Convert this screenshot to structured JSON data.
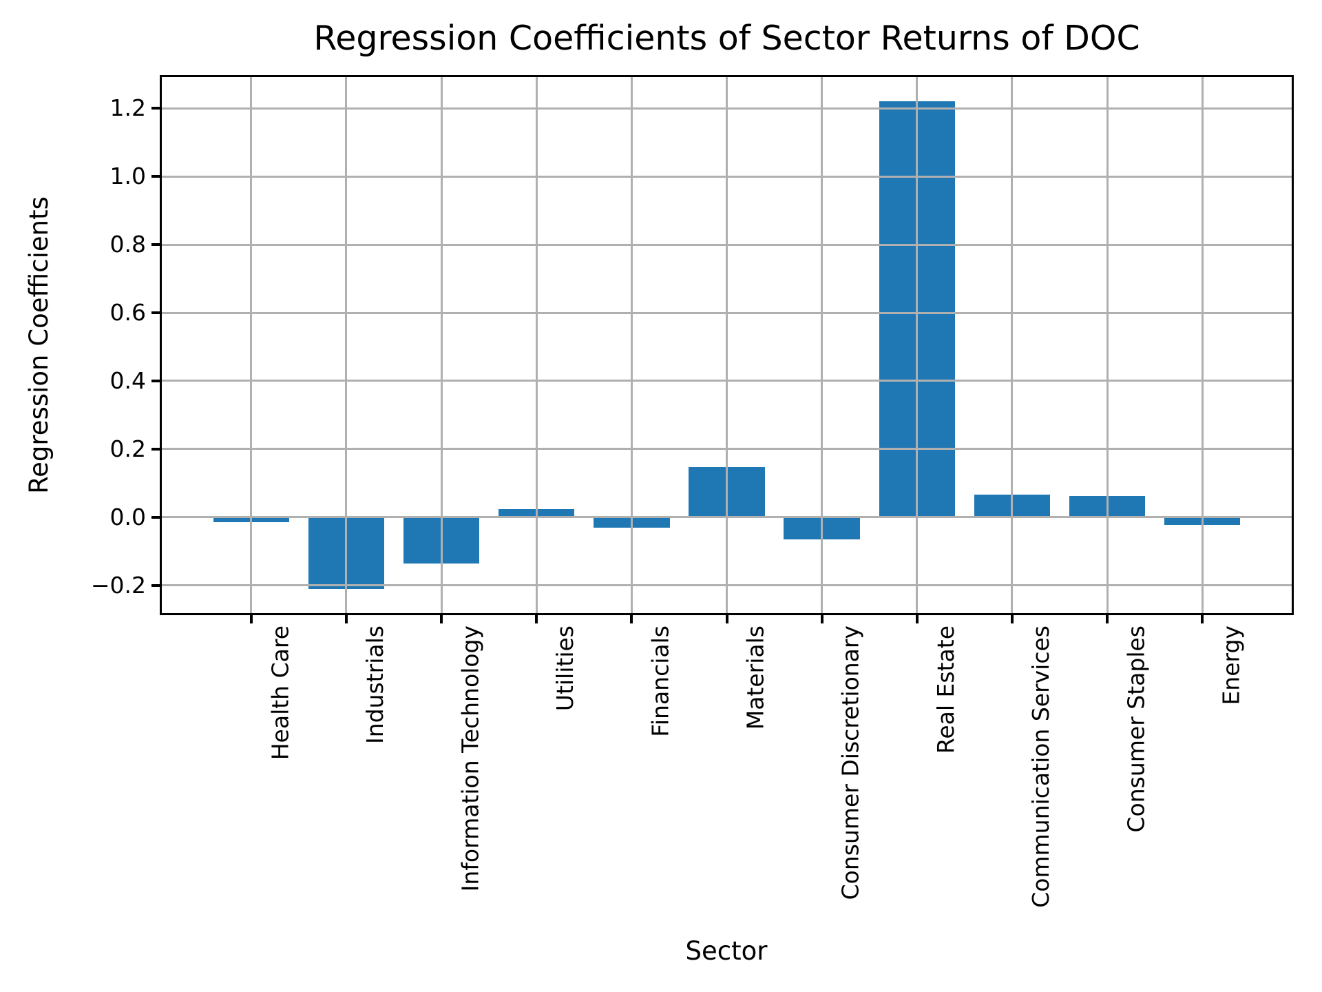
{
  "chart_data": {
    "type": "bar",
    "title": "Regression Coefficients of Sector Returns of DOC",
    "xlabel": "Sector",
    "ylabel": "Regression Coefficients",
    "categories": [
      "Health Care",
      "Industrials",
      "Information Technology",
      "Utilities",
      "Financials",
      "Materials",
      "Consumer Discretionary",
      "Real Estate",
      "Communication Services",
      "Consumer Staples",
      "Energy"
    ],
    "values": [
      -0.015,
      -0.21,
      -0.135,
      0.024,
      -0.03,
      0.148,
      -0.066,
      1.22,
      0.067,
      0.063,
      -0.022
    ],
    "ylim": [
      -0.2815,
      1.2915
    ],
    "yticks": {
      "values": [
        -0.2,
        0.0,
        0.2,
        0.4,
        0.6,
        0.8,
        1.0,
        1.2
      ],
      "labels": [
        "−0.2",
        "0.0",
        "0.2",
        "0.4",
        "0.6",
        "0.8",
        "1.0",
        "1.2"
      ]
    },
    "grid": true,
    "legend_position": "none",
    "bar_color": "#1f77b4",
    "grid_color": "#b0b0b0",
    "axis_color": "#000000"
  }
}
